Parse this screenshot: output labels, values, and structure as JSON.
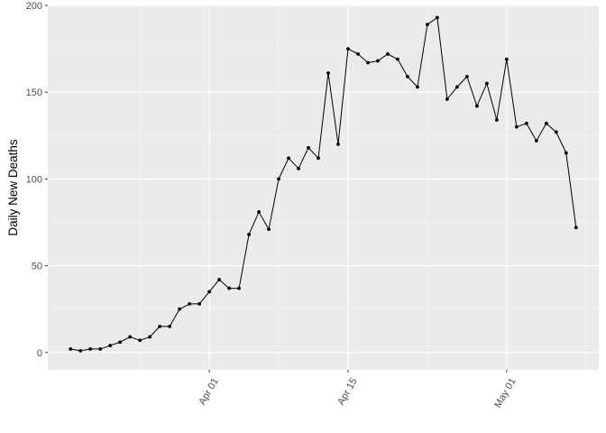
{
  "chart_data": {
    "type": "line",
    "title": "",
    "xlabel": "",
    "ylabel": "Daily New Deaths",
    "x_start": "2020-03-18",
    "x_end": "2020-05-08",
    "x_ticks": [
      {
        "date": "2020-04-01",
        "label": "Apr 01"
      },
      {
        "date": "2020-04-15",
        "label": "Apr 15"
      },
      {
        "date": "2020-05-01",
        "label": "May 01"
      }
    ],
    "ylim": [
      -10,
      200
    ],
    "y_ticks": [
      0,
      50,
      100,
      150,
      200
    ],
    "grid": true,
    "legend": "none",
    "series": [
      {
        "x": [
          "2020-03-18",
          "2020-03-19",
          "2020-03-20",
          "2020-03-21",
          "2020-03-22",
          "2020-03-23",
          "2020-03-24",
          "2020-03-25",
          "2020-03-26",
          "2020-03-27",
          "2020-03-28",
          "2020-03-29",
          "2020-03-30",
          "2020-03-31",
          "2020-04-01",
          "2020-04-02",
          "2020-04-03",
          "2020-04-04",
          "2020-04-05",
          "2020-04-06",
          "2020-04-07",
          "2020-04-08",
          "2020-04-09",
          "2020-04-10",
          "2020-04-11",
          "2020-04-12",
          "2020-04-13",
          "2020-04-14",
          "2020-04-15",
          "2020-04-16",
          "2020-04-17",
          "2020-04-18",
          "2020-04-19",
          "2020-04-20",
          "2020-04-21",
          "2020-04-22",
          "2020-04-23",
          "2020-04-24",
          "2020-04-25",
          "2020-04-26",
          "2020-04-27",
          "2020-04-28",
          "2020-04-29",
          "2020-04-30",
          "2020-05-01",
          "2020-05-02",
          "2020-05-03",
          "2020-05-04",
          "2020-05-05",
          "2020-05-06",
          "2020-05-07",
          "2020-05-08"
        ],
        "values": [
          2,
          1,
          2,
          2,
          4,
          6,
          9,
          7,
          9,
          15,
          15,
          25,
          28,
          28,
          35,
          42,
          37,
          37,
          68,
          81,
          71,
          100,
          112,
          106,
          118,
          112,
          161,
          120,
          175,
          172,
          167,
          168,
          172,
          169,
          159,
          153,
          189,
          193,
          146,
          153,
          159,
          142,
          155,
          134,
          169,
          130,
          132,
          122,
          132,
          127,
          115,
          72
        ],
        "color": "#000000"
      }
    ],
    "colors": {
      "panel": "#ebebeb",
      "grid_major": "#ffffff",
      "grid_minor": "#f5f5f5",
      "tick_label": "#4d4d4d",
      "tick_mark": "#333333"
    }
  }
}
